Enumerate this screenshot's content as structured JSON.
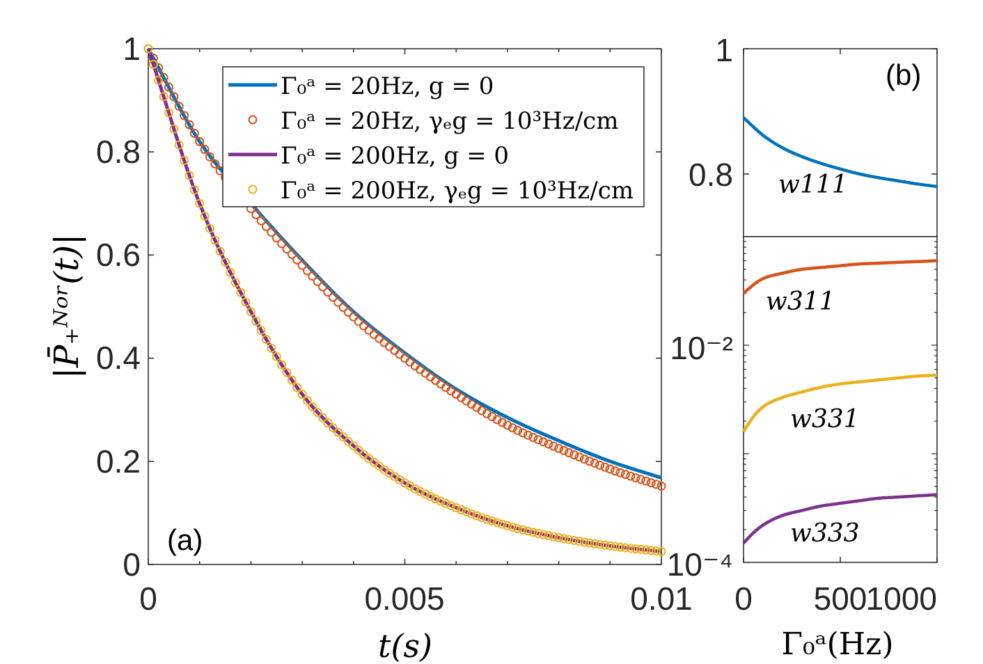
{
  "figure_labels": {
    "a": "(a)",
    "b": "(b)"
  },
  "axis_labels": {
    "a_x": "t(s)",
    "a_y": "|P̄₊ᴺᵒʳ(t)|",
    "b_x": "Γ₀ᵃ(Hz)"
  },
  "legend": [
    "Γ₀ᵃ = 20Hz, g = 0",
    "Γ₀ᵃ = 20Hz, γₑg = 10³Hz/cm",
    "Γ₀ᵃ = 200Hz, g = 0",
    "Γ₀ᵃ = 200Hz, γₑg = 10³Hz/cm"
  ],
  "curve_labels": {
    "w111": "w111",
    "w311": "w311",
    "w331": "w331",
    "w333": "w333"
  },
  "chart_data": [
    {
      "id": "a",
      "type": "line",
      "xlabel": "t(s)",
      "ylabel": "|P̄₊ᴺᵒʳ(t)|",
      "xlim": [
        0,
        0.01
      ],
      "ylim": [
        0,
        1
      ],
      "x_ticks": [
        "0",
        "0.005",
        "0.01"
      ],
      "y_ticks": [
        "0",
        "0.2",
        "0.4",
        "0.6",
        "0.8",
        "1"
      ],
      "legend_position": "top-right",
      "series": [
        {
          "name": "Γ₀ᵃ = 20Hz, g = 0",
          "style": "line",
          "color": "#0072BD",
          "x": [
            0,
            0.001,
            0.002,
            0.003,
            0.004,
            0.005,
            0.006,
            0.007,
            0.008,
            0.009,
            0.01
          ],
          "y": [
            1.0,
            0.82,
            0.7,
            0.59,
            0.49,
            0.41,
            0.34,
            0.285,
            0.24,
            0.2,
            0.168
          ]
        },
        {
          "name": "Γ₀ᵃ = 20Hz, γₑg = 10³Hz/cm",
          "style": "markers",
          "color": "#D95319",
          "x": [
            0,
            0.001,
            0.002,
            0.003,
            0.004,
            0.005,
            0.006,
            0.007,
            0.008,
            0.009,
            0.01
          ],
          "y": [
            1.0,
            0.82,
            0.69,
            0.58,
            0.48,
            0.4,
            0.33,
            0.27,
            0.225,
            0.185,
            0.152
          ]
        },
        {
          "name": "Γ₀ᵃ = 200Hz, g = 0",
          "style": "line",
          "color": "#7E2F8E",
          "x": [
            0,
            0.001,
            0.002,
            0.003,
            0.004,
            0.005,
            0.006,
            0.007,
            0.008,
            0.009,
            0.01
          ],
          "y": [
            1.0,
            0.7,
            0.49,
            0.33,
            0.23,
            0.158,
            0.11,
            0.075,
            0.052,
            0.036,
            0.025
          ]
        },
        {
          "name": "Γ₀ᵃ = 200Hz, γₑg = 10³Hz/cm",
          "style": "markers",
          "color": "#EDB120",
          "x": [
            0,
            0.001,
            0.002,
            0.003,
            0.004,
            0.005,
            0.006,
            0.007,
            0.008,
            0.009,
            0.01
          ],
          "y": [
            1.0,
            0.7,
            0.49,
            0.33,
            0.23,
            0.158,
            0.11,
            0.075,
            0.052,
            0.036,
            0.025
          ]
        }
      ]
    },
    {
      "id": "b_top",
      "type": "line",
      "xlim": [
        0,
        1000
      ],
      "ylim": [
        0.7,
        1
      ],
      "y_ticks": [
        "0.8",
        "1"
      ],
      "series": [
        {
          "name": "w111",
          "color": "#0072BD",
          "x": [
            0,
            100,
            200,
            300,
            400,
            500,
            600,
            700,
            800,
            900,
            1000
          ],
          "y": [
            0.89,
            0.862,
            0.842,
            0.828,
            0.817,
            0.808,
            0.8,
            0.794,
            0.789,
            0.784,
            0.78
          ]
        }
      ]
    },
    {
      "id": "b_bottom",
      "type": "line",
      "xlabel": "Γ₀ᵃ(Hz)",
      "xlim": [
        0,
        1000
      ],
      "ylim": [
        0.0001,
        0.1
      ],
      "yscale": "log",
      "x_ticks": [
        "0",
        "500",
        "1000"
      ],
      "y_ticks": [
        "10⁻⁴",
        "10⁻²"
      ],
      "series": [
        {
          "name": "w311",
          "color": "#D95319",
          "x": [
            0,
            100,
            200,
            300,
            400,
            500,
            600,
            700,
            800,
            900,
            1000
          ],
          "y": [
            0.03,
            0.041,
            0.046,
            0.05,
            0.052,
            0.054,
            0.056,
            0.057,
            0.058,
            0.059,
            0.06
          ]
        },
        {
          "name": "w331",
          "color": "#EDB120",
          "x": [
            0,
            100,
            200,
            300,
            400,
            500,
            600,
            700,
            800,
            900,
            1000
          ],
          "y": [
            0.0016,
            0.0027,
            0.0033,
            0.0037,
            0.0041,
            0.0044,
            0.0046,
            0.0048,
            0.005,
            0.0052,
            0.0053
          ]
        },
        {
          "name": "w333",
          "color": "#7E2F8E",
          "x": [
            0,
            100,
            200,
            300,
            400,
            500,
            600,
            700,
            800,
            900,
            1000
          ],
          "y": [
            0.00015,
            0.00022,
            0.00027,
            0.0003,
            0.00033,
            0.00035,
            0.00037,
            0.00039,
            0.0004,
            0.00041,
            0.00042
          ]
        }
      ]
    }
  ]
}
